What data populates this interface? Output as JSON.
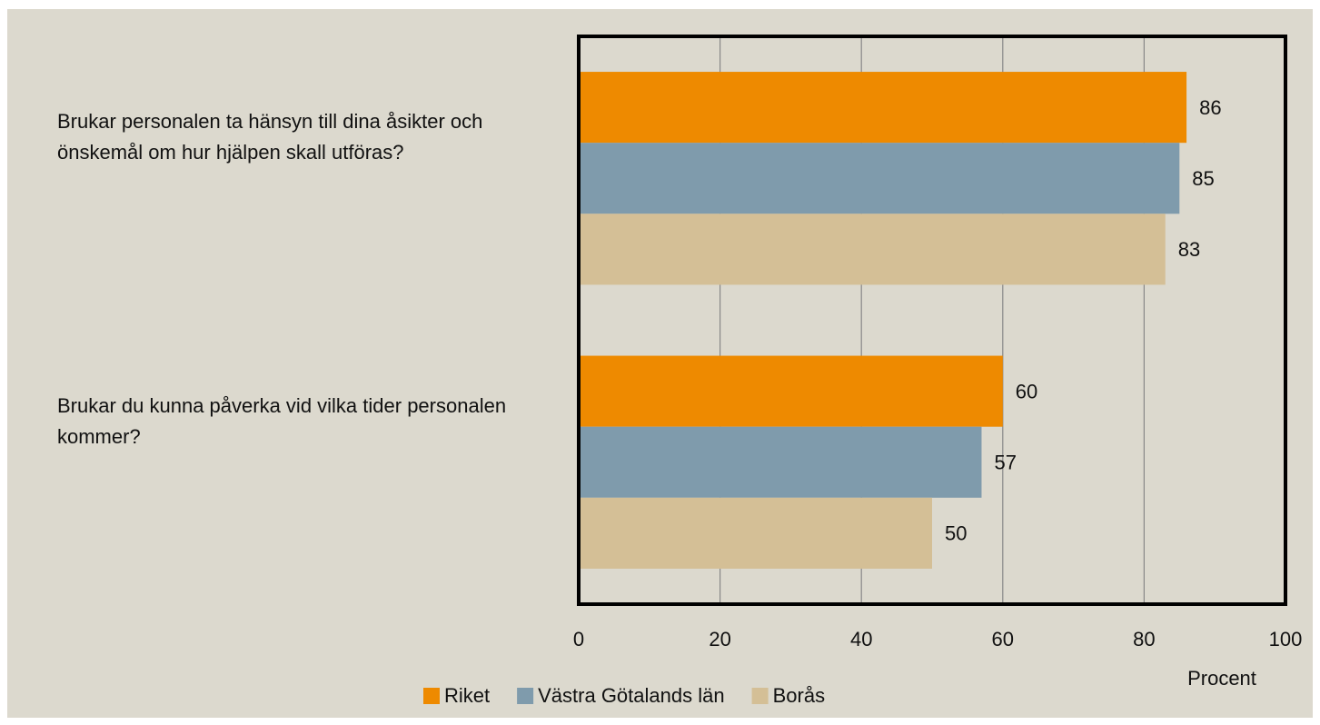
{
  "chart_data": {
    "type": "barh",
    "categories": [
      "Brukar personalen ta hänsyn till dina åsikter och önskemål om hur hjälpen skall utföras?",
      "Brukar du kunna påverka vid vilka tider personalen kommer?"
    ],
    "series": [
      {
        "name": "Riket",
        "color": "#ee8a00",
        "values": [
          86,
          60
        ]
      },
      {
        "name": "Västra Götalands län",
        "color": "#7f9bac",
        "values": [
          85,
          57
        ]
      },
      {
        "name": "Borås",
        "color": "#d4bf96",
        "values": [
          83,
          50
        ]
      }
    ],
    "xlabel": "Procent",
    "xlim": [
      0,
      100
    ],
    "xticks": [
      0,
      20,
      40,
      60,
      80,
      100
    ],
    "grid": true,
    "legend": "bottom"
  }
}
